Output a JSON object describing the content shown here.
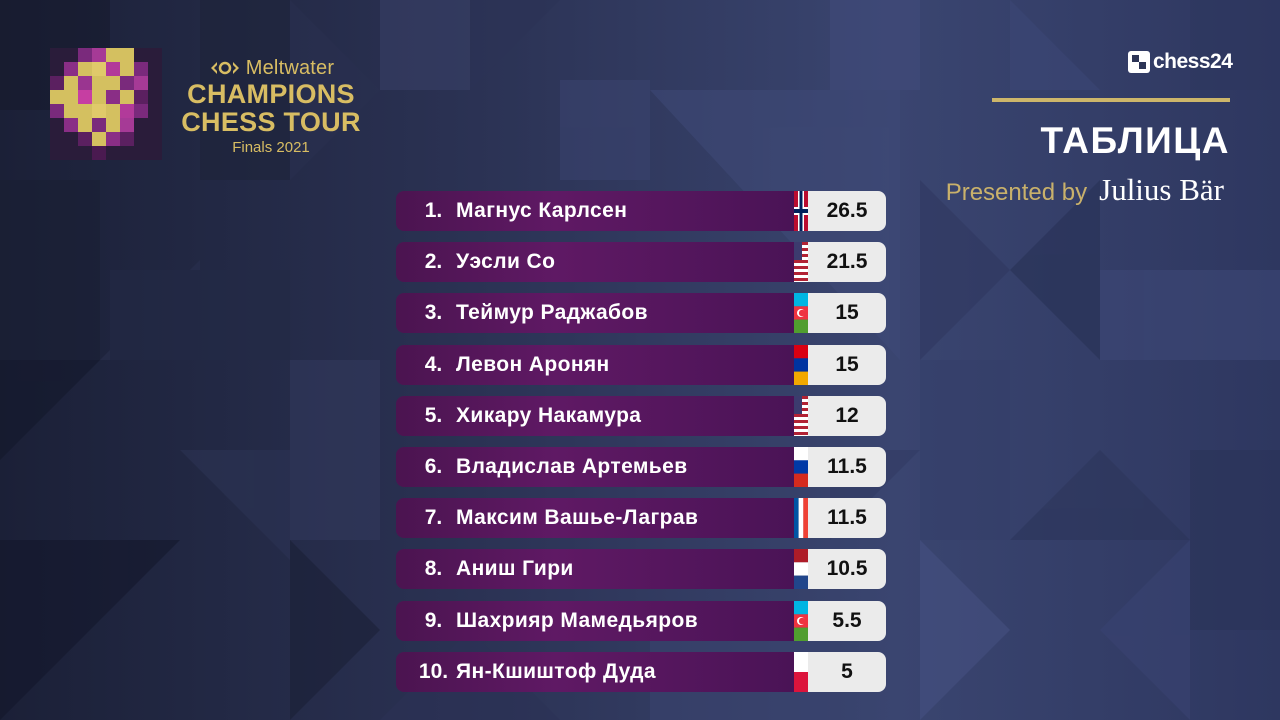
{
  "event": {
    "sponsor": "Meltwater",
    "title_line1": "CHAMPIONS",
    "title_line2": "CHESS TOUR",
    "subtitle": "Finals 2021"
  },
  "brand": {
    "chess24": "chess24"
  },
  "header": {
    "title": "ТАБЛИЦА",
    "presented_by": "Presented by",
    "sponsor_name": "Julius Bär"
  },
  "colors": {
    "gold": "#d8bd63",
    "row_purple": "#5f1964",
    "score_bg": "#ebebeb",
    "background": "#2c3456"
  },
  "standings": [
    {
      "rank": "1.",
      "name": "Магнус Карлсен",
      "flag": "norway",
      "score": "26.5"
    },
    {
      "rank": "2.",
      "name": "Уэсли Со",
      "flag": "usa",
      "score": "21.5"
    },
    {
      "rank": "3.",
      "name": "Теймур Раджабов",
      "flag": "azerbaijan",
      "score": "15"
    },
    {
      "rank": "4.",
      "name": "Левон Аронян",
      "flag": "armenia",
      "score": "15"
    },
    {
      "rank": "5.",
      "name": "Хикару Накамура",
      "flag": "usa",
      "score": "12"
    },
    {
      "rank": "6.",
      "name": "Владислав Артемьев",
      "flag": "russia",
      "score": "11.5"
    },
    {
      "rank": "7.",
      "name": "Максим Вашье-Лаграв",
      "flag": "france",
      "score": "11.5"
    },
    {
      "rank": "8.",
      "name": "Аниш Гири",
      "flag": "netherlands",
      "score": "10.5"
    },
    {
      "rank": "9.",
      "name": "Шахрияр Мамедьяров",
      "flag": "azerbaijan",
      "score": "5.5"
    },
    {
      "rank": "10.",
      "name": "Ян-Кшиштоф Дуда",
      "flag": "poland",
      "score": "5"
    }
  ]
}
